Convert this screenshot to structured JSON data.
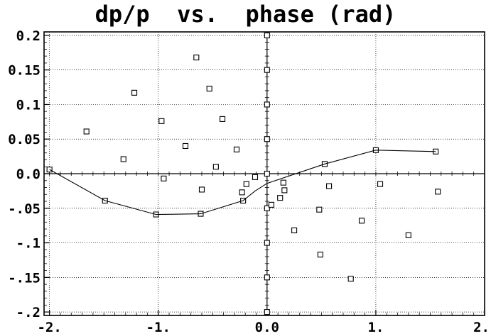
{
  "chart_data": {
    "type": "scatter",
    "title": "dp/p  vs.  phase (rad)",
    "xlabel": "",
    "ylabel": "",
    "xlim": [
      -2.05,
      2.0
    ],
    "ylim": [
      -0.205,
      0.205
    ],
    "grid": true,
    "x_ticks": [
      {
        "value": -2.0,
        "label": "-2."
      },
      {
        "value": -1.0,
        "label": "-1."
      },
      {
        "value": 0.0,
        "label": "0.0"
      },
      {
        "value": 1.0,
        "label": "1."
      },
      {
        "value": 2.0,
        "label": "2."
      }
    ],
    "y_ticks": [
      {
        "value": 0.2,
        "label": "0.2"
      },
      {
        "value": 0.15,
        "label": "0.15"
      },
      {
        "value": 0.1,
        "label": "0.1"
      },
      {
        "value": 0.05,
        "label": "0.05"
      },
      {
        "value": 0.0,
        "label": "0.0"
      },
      {
        "value": -0.05,
        "label": "-.05"
      },
      {
        "value": -0.1,
        "label": "-.1"
      },
      {
        "value": -0.15,
        "label": "-.15"
      },
      {
        "value": -0.2,
        "label": "-.2"
      }
    ],
    "series": [
      {
        "style": "markers",
        "marker": "square",
        "points": [
          {
            "x": -2.0,
            "y": 0.006
          },
          {
            "x": -1.66,
            "y": 0.061
          },
          {
            "x": -1.49,
            "y": -0.039
          },
          {
            "x": -1.32,
            "y": 0.021
          },
          {
            "x": -1.22,
            "y": 0.117
          },
          {
            "x": -1.02,
            "y": -0.059
          },
          {
            "x": -0.97,
            "y": 0.076
          },
          {
            "x": -0.95,
            "y": -0.007
          },
          {
            "x": -0.75,
            "y": 0.04
          },
          {
            "x": -0.65,
            "y": 0.168
          },
          {
            "x": -0.61,
            "y": -0.058
          },
          {
            "x": -0.6,
            "y": -0.023
          },
          {
            "x": -0.53,
            "y": 0.123
          },
          {
            "x": -0.47,
            "y": 0.01
          },
          {
            "x": -0.41,
            "y": 0.079
          },
          {
            "x": -0.28,
            "y": 0.035
          },
          {
            "x": -0.23,
            "y": -0.027
          },
          {
            "x": -0.22,
            "y": -0.039
          },
          {
            "x": -0.19,
            "y": -0.015
          },
          {
            "x": -0.11,
            "y": -0.005
          },
          {
            "x": 0.0,
            "y": 0.2
          },
          {
            "x": 0.0,
            "y": 0.15
          },
          {
            "x": 0.0,
            "y": 0.1
          },
          {
            "x": 0.0,
            "y": 0.05
          },
          {
            "x": 0.0,
            "y": 0.0
          },
          {
            "x": 0.0,
            "y": -0.05
          },
          {
            "x": 0.0,
            "y": -0.1
          },
          {
            "x": 0.0,
            "y": -0.15
          },
          {
            "x": 0.0,
            "y": -0.2
          },
          {
            "x": 0.04,
            "y": -0.045
          },
          {
            "x": 0.12,
            "y": -0.035
          },
          {
            "x": 0.15,
            "y": -0.013
          },
          {
            "x": 0.16,
            "y": -0.024
          },
          {
            "x": 0.25,
            "y": -0.082
          },
          {
            "x": 0.48,
            "y": -0.052
          },
          {
            "x": 0.49,
            "y": -0.117
          },
          {
            "x": 0.53,
            "y": 0.014
          },
          {
            "x": 0.57,
            "y": -0.018
          },
          {
            "x": 0.77,
            "y": -0.152
          },
          {
            "x": 0.87,
            "y": -0.068
          },
          {
            "x": 1.0,
            "y": 0.034
          },
          {
            "x": 1.04,
            "y": -0.015
          },
          {
            "x": 1.3,
            "y": -0.089
          },
          {
            "x": 1.55,
            "y": 0.032
          },
          {
            "x": 1.57,
            "y": -0.026
          }
        ]
      },
      {
        "style": "line",
        "points": [
          {
            "x": -2.0,
            "y": 0.006
          },
          {
            "x": -1.49,
            "y": -0.039
          },
          {
            "x": -1.02,
            "y": -0.059
          },
          {
            "x": -0.61,
            "y": -0.058
          },
          {
            "x": -0.22,
            "y": -0.039
          },
          {
            "x": -0.11,
            "y": -0.025
          },
          {
            "x": 0.0,
            "y": -0.014
          },
          {
            "x": 0.53,
            "y": 0.014
          },
          {
            "x": 1.0,
            "y": 0.034
          },
          {
            "x": 1.55,
            "y": 0.032
          }
        ]
      }
    ]
  }
}
